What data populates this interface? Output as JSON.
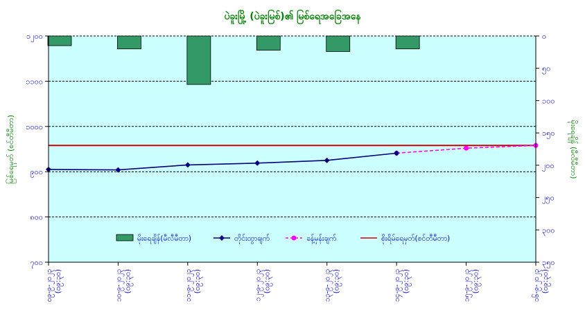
{
  "chart_data": {
    "type": "bar+line",
    "title": "ပဲခူးမြို့ (ပဲခူးမြစ်)၏ မြစ်ရေအခြေအနေ",
    "ylabel_left": "မြစ်ရေမှတ် (စင်တီမီတာ)",
    "ylabel_right": "မိုးရေချိန် (မီလီမီတာ)",
    "y_left": {
      "range": [
        700,
        1200
      ],
      "ticks": [
        700,
        800,
        900,
        1000,
        1100,
        1200
      ],
      "tick_labels": [
        "၇၀၀",
        "၈၀၀",
        "၉၀၀",
        "၁၀၀၀",
        "၁၁၀၀",
        "၁၂၀၀"
      ]
    },
    "y_right": {
      "range": [
        0,
        350
      ],
      "reversed": true,
      "ticks": [
        0,
        50,
        100,
        150,
        200,
        250,
        300,
        350
      ],
      "tick_labels": [
        "၀",
        "၅၀",
        "၁၀၀",
        "၁၅၀",
        "၂၀၀",
        "၂၅၀",
        "၃၀၀",
        "၃၅၀"
      ]
    },
    "categories": [
      "၀၉-၉-၂၀၂၃ (၀၉:၃၀)",
      "၁၀-၉-၂၀၂၃ (၀၉:၃၀)",
      "၁၁-၉-၂၀၂၃ (၀၉:၃၀)",
      "၁၂-၉-၂၀၂၃ (၀၉:၃၀)",
      "၁၃-၉-၂၀၂၃ (၀၉:၃၀)",
      "၁၄-၉-၂၀၂၃ (၀၉:၃၀)",
      "၁၅-၉-၂၀၂၃ (၀၉:၃၀)",
      "၁၆-၉-၂၀၂၃ (၀၉:၃၀)"
    ],
    "grid": true,
    "legend_position": "bottom",
    "series": [
      {
        "name": "မိုးရေချိန်(မီလီမီတာ)",
        "type": "bar",
        "axis": "right",
        "color": "#339966",
        "values": [
          15,
          20,
          75,
          22,
          24,
          20,
          null,
          null
        ]
      },
      {
        "name": "တိုင်းထွာချက်",
        "type": "line",
        "axis": "left",
        "color": "#000080",
        "values": [
          905,
          904,
          915,
          919,
          925,
          941,
          null,
          null
        ]
      },
      {
        "name": "ခန့်မှန်းချက်",
        "type": "line-dashed",
        "axis": "left",
        "color": "#ff00ff",
        "values": [
          null,
          null,
          null,
          null,
          null,
          941,
          952,
          958
        ]
      },
      {
        "name": "စိုးရိမ်ရေမှတ်(စင်တီမီတာ)",
        "type": "hline",
        "axis": "left",
        "color": "#cc0000",
        "value": 958
      }
    ]
  },
  "colors": {
    "plot_background": "#ccffff",
    "title": "#008000",
    "axis_labels": "#008000",
    "tick_labels": "#0000cc"
  }
}
